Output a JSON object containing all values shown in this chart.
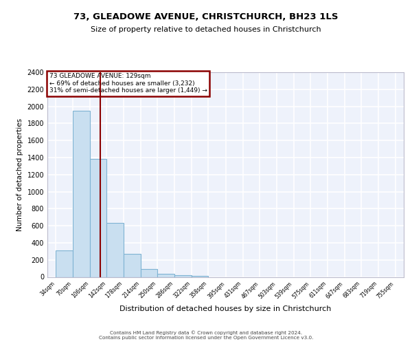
{
  "title1": "73, GLEADOWE AVENUE, CHRISTCHURCH, BH23 1LS",
  "title2": "Size of property relative to detached houses in Christchurch",
  "xlabel": "Distribution of detached houses by size in Christchurch",
  "ylabel": "Number of detached properties",
  "footer1": "Contains HM Land Registry data © Crown copyright and database right 2024.",
  "footer2": "Contains public sector information licensed under the Open Government Licence v3.0.",
  "annotation_line1": "73 GLEADOWE AVENUE: 129sqm",
  "annotation_line2": "← 69% of detached houses are smaller (3,232)",
  "annotation_line3": "31% of semi-detached houses are larger (1,449) →",
  "bar_left_edges": [
    34,
    70,
    106,
    142,
    178,
    214,
    250,
    286,
    322,
    358,
    395,
    431,
    467,
    503,
    539,
    575,
    611,
    647,
    683,
    719
  ],
  "bar_heights": [
    310,
    1950,
    1380,
    630,
    270,
    90,
    35,
    20,
    15,
    0,
    0,
    0,
    0,
    0,
    0,
    0,
    0,
    0,
    0,
    0
  ],
  "bin_width": 36,
  "bar_color": "#c9dff0",
  "bar_edge_color": "#7fb3d3",
  "vline_x": 129,
  "vline_color": "#8b0000",
  "ylim": [
    0,
    2400
  ],
  "yticks": [
    0,
    200,
    400,
    600,
    800,
    1000,
    1200,
    1400,
    1600,
    1800,
    2000,
    2200,
    2400
  ],
  "xlim_left": 16,
  "xlim_right": 773,
  "xtick_labels": [
    "34sqm",
    "70sqm",
    "106sqm",
    "142sqm",
    "178sqm",
    "214sqm",
    "250sqm",
    "286sqm",
    "322sqm",
    "358sqm",
    "395sqm",
    "431sqm",
    "467sqm",
    "503sqm",
    "539sqm",
    "575sqm",
    "611sqm",
    "647sqm",
    "683sqm",
    "719sqm",
    "755sqm"
  ],
  "xtick_positions": [
    34,
    70,
    106,
    142,
    178,
    214,
    250,
    286,
    322,
    358,
    395,
    431,
    467,
    503,
    539,
    575,
    611,
    647,
    683,
    719,
    755
  ],
  "bg_color": "#eef2fb",
  "grid_color": "#ffffff",
  "annotation_box_color": "#ffffff",
  "annotation_box_edge_color": "#8b0000"
}
